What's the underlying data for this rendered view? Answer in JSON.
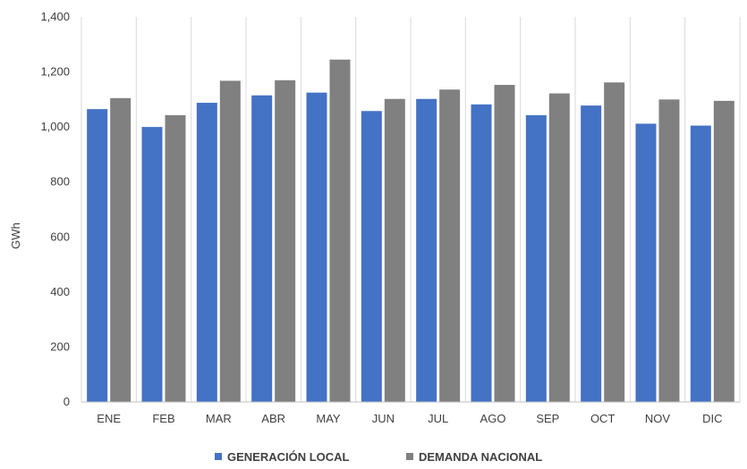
{
  "colors": {
    "generacion": "#4472C4",
    "demanda": "#808080",
    "grid": "#D9D9D9",
    "axis": "#BFBFBF"
  },
  "chart_data": {
    "type": "bar",
    "title": "",
    "xlabel": "",
    "ylabel": "GWh",
    "ylim": [
      0,
      1400
    ],
    "yticks": [
      "0",
      "200",
      "400",
      "600",
      "800",
      "1,000",
      "1,200",
      "1,400"
    ],
    "ytick_values": [
      0,
      200,
      400,
      600,
      800,
      1000,
      1200,
      1400
    ],
    "grid": "vertical",
    "legend_position": "bottom",
    "categories": [
      "ENE",
      "FEB",
      "MAR",
      "ABR",
      "MAY",
      "JUN",
      "JUL",
      "AGO",
      "SEP",
      "OCT",
      "NOV",
      "DIC"
    ],
    "series": [
      {
        "name": "GENERACIÓN LOCAL",
        "color": "#4472C4",
        "values": [
          1065,
          1000,
          1088,
          1115,
          1125,
          1058,
          1102,
          1082,
          1043,
          1078,
          1012,
          1005
        ]
      },
      {
        "name": "DEMANDA NACIONAL",
        "color": "#808080",
        "values": [
          1105,
          1043,
          1168,
          1170,
          1245,
          1102,
          1136,
          1153,
          1122,
          1162,
          1100,
          1095
        ]
      }
    ]
  }
}
